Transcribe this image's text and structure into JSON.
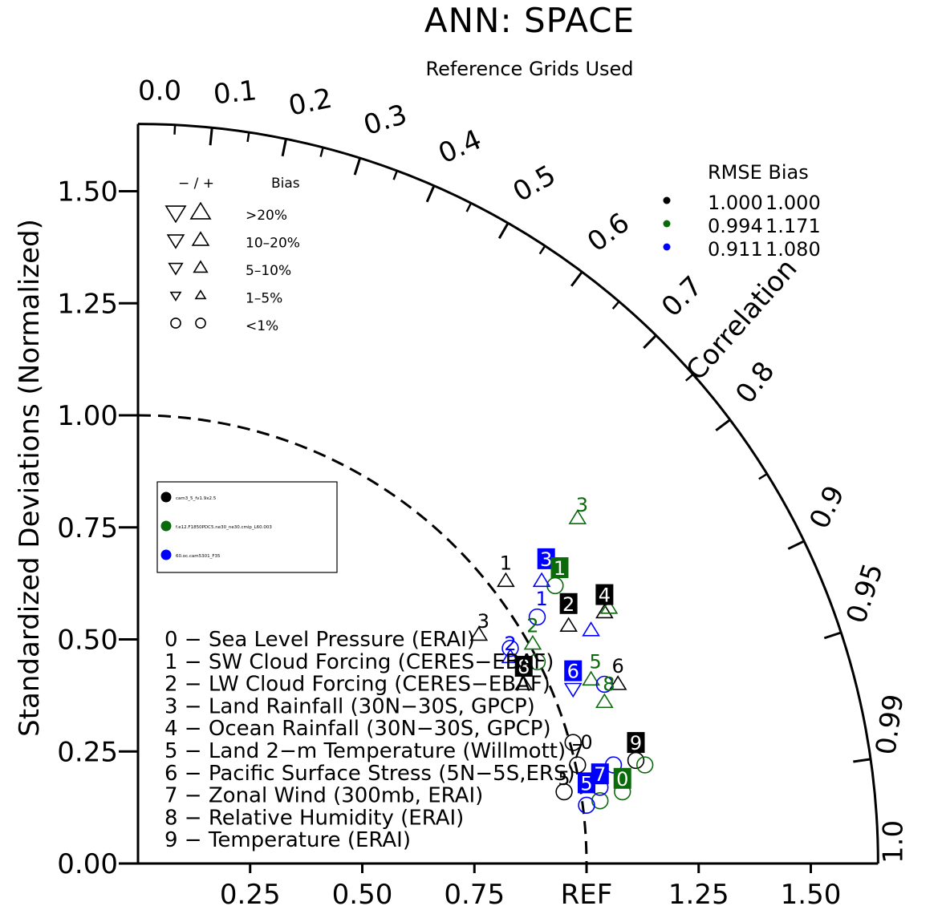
{
  "chart_data": {
    "type": "scatter",
    "subtype": "taylor-diagram",
    "title": "ANN: SPACE",
    "subtitle": "Reference Grids Used",
    "ylabel": "Standardized Deviations (Normalized)",
    "arc_label": "Correlation",
    "ref_label": "REF",
    "max_radius": 1.65,
    "y_ticks": [
      "0.00",
      "0.25",
      "0.50",
      "0.75",
      "1.00",
      "1.25",
      "1.50"
    ],
    "x_ticks": [
      "0.25",
      "0.50",
      "0.75",
      "REF",
      "1.25",
      "1.50"
    ],
    "correlation_ticks": [
      "0.0",
      "0.1",
      "0.2",
      "0.3",
      "0.4",
      "0.5",
      "0.6",
      "0.7",
      "0.8",
      "0.9",
      "0.95",
      "0.99",
      "1.0"
    ],
    "bias_legend": {
      "header_signs": "− / +",
      "header_label": "Bias",
      "rows": [
        ">20%",
        "10–20%",
        "5–10%",
        "1–5%",
        "<1%"
      ]
    },
    "rmse_table": {
      "header": "RMSE  Bias",
      "rows": [
        {
          "rmse": "1.000",
          "bias": "1.000",
          "color": "#000000"
        },
        {
          "rmse": "0.994",
          "bias": "1.171",
          "color": "#0b6b0b"
        },
        {
          "rmse": "0.911",
          "bias": "1.080",
          "color": "#0000ff"
        }
      ]
    },
    "variables": [
      "0 − Sea Level Pressure (ERAI)",
      "1 − SW Cloud Forcing (CERES−EBAF)",
      "2 − LW Cloud Forcing (CERES−EBAF)",
      "3 − Land Rainfall (30N−30S, GPCP)",
      "4 − Ocean Rainfall (30N−30S, GPCP)",
      "5 − Land 2−m Temperature (Willmott)",
      "6 − Pacific Surface Stress (5N−5S,ERS)",
      "7 − Zonal Wind (300mb, ERAI)",
      "8 − Relative Humidity (ERAI)",
      "9 − Temperature (ERAI)"
    ],
    "series": [
      {
        "name": "cam3_5_fv1.9x2.5",
        "color": "#000000",
        "points": [
          {
            "id": "0",
            "x": 0.97,
            "y": 0.27,
            "marker": "circle"
          },
          {
            "id": "1",
            "x": 0.82,
            "y": 0.63,
            "marker": "triangle-up"
          },
          {
            "id": "2",
            "x": 0.96,
            "y": 0.53,
            "marker": "triangle-up"
          },
          {
            "id": "3",
            "x": 0.76,
            "y": 0.51,
            "marker": "triangle-up"
          },
          {
            "id": "4",
            "x": 1.04,
            "y": 0.56,
            "marker": "triangle-up"
          },
          {
            "id": "5",
            "x": 0.95,
            "y": 0.16,
            "marker": "circle"
          },
          {
            "id": "6",
            "x": 1.07,
            "y": 0.4,
            "marker": "triangle-up"
          },
          {
            "id": "7",
            "x": 0.98,
            "y": 0.22,
            "marker": "circle"
          },
          {
            "id": "8",
            "x": 0.86,
            "y": 0.4,
            "marker": "triangle-up"
          },
          {
            "id": "9",
            "x": 1.11,
            "y": 0.23,
            "marker": "circle"
          }
        ]
      },
      {
        "name": "f.e12.F1850PDC5.ne30_ne30.cmip_L60.003",
        "color": "#0b6b0b",
        "points": [
          {
            "id": "0",
            "x": 1.08,
            "y": 0.16,
            "marker": "circle"
          },
          {
            "id": "1",
            "x": 0.93,
            "y": 0.62,
            "marker": "circle"
          },
          {
            "id": "2",
            "x": 0.88,
            "y": 0.49,
            "marker": "triangle-up"
          },
          {
            "id": "3",
            "x": 0.98,
            "y": 0.77,
            "marker": "triangle-up"
          },
          {
            "id": "4",
            "x": 1.05,
            "y": 0.57,
            "marker": "triangle-up"
          },
          {
            "id": "5",
            "x": 1.01,
            "y": 0.41,
            "marker": "triangle-up"
          },
          {
            "id": "6",
            "x": 1.04,
            "y": 0.36,
            "marker": "triangle-up"
          },
          {
            "id": "7",
            "x": 1.03,
            "y": 0.14,
            "marker": "circle"
          },
          {
            "id": "8",
            "x": 0.89,
            "y": 0.45,
            "marker": "circle"
          },
          {
            "id": "9",
            "x": 1.13,
            "y": 0.22,
            "marker": "circle"
          }
        ]
      },
      {
        "name": "60.oc.cam5301_F35",
        "color": "#0000ff",
        "points": [
          {
            "id": "0",
            "x": 1.06,
            "y": 0.22,
            "marker": "circle"
          },
          {
            "id": "1",
            "x": 0.89,
            "y": 0.55,
            "marker": "circle"
          },
          {
            "id": "2",
            "x": 0.83,
            "y": 0.46,
            "marker": "triangle-up"
          },
          {
            "id": "3",
            "x": 0.9,
            "y": 0.63,
            "marker": "triangle-up"
          },
          {
            "id": "4",
            "x": 1.01,
            "y": 0.52,
            "marker": "triangle-up"
          },
          {
            "id": "5",
            "x": 1.0,
            "y": 0.13,
            "marker": "circle"
          },
          {
            "id": "6",
            "x": 0.97,
            "y": 0.39,
            "marker": "triangle-down"
          },
          {
            "id": "7",
            "x": 1.03,
            "y": 0.17,
            "marker": "circle"
          },
          {
            "id": "8",
            "x": 0.83,
            "y": 0.48,
            "marker": "circle"
          },
          {
            "id": "9",
            "x": 1.04,
            "y": 0.4,
            "marker": "circle"
          }
        ]
      }
    ],
    "boxed_labels": [
      {
        "id": "8",
        "series": 0,
        "x": 0.86,
        "y": 0.44
      },
      {
        "id": "2",
        "series": 0,
        "x": 0.96,
        "y": 0.58
      },
      {
        "id": "4",
        "series": 0,
        "x": 1.04,
        "y": 0.6
      },
      {
        "id": "9",
        "series": 0,
        "x": 1.11,
        "y": 0.27
      },
      {
        "id": "3",
        "series": 2,
        "x": 0.91,
        "y": 0.68
      },
      {
        "id": "1",
        "series": 1,
        "x": 0.94,
        "y": 0.66
      },
      {
        "id": "6",
        "series": 2,
        "x": 0.97,
        "y": 0.43
      },
      {
        "id": "7",
        "series": 2,
        "x": 1.03,
        "y": 0.2
      },
      {
        "id": "5",
        "series": 2,
        "x": 1.0,
        "y": 0.18
      },
      {
        "id": "0",
        "series": 1,
        "x": 1.08,
        "y": 0.19
      }
    ],
    "number_labels": [
      {
        "id": "1",
        "series": 0,
        "x": 0.82,
        "y": 0.67
      },
      {
        "id": "3",
        "series": 0,
        "x": 0.77,
        "y": 0.54
      },
      {
        "id": "6",
        "series": 0,
        "x": 1.07,
        "y": 0.44
      },
      {
        "id": "3",
        "series": 1,
        "x": 0.99,
        "y": 0.8
      },
      {
        "id": "2",
        "series": 1,
        "x": 0.88,
        "y": 0.53
      },
      {
        "id": "1",
        "series": 2,
        "x": 0.9,
        "y": 0.59
      },
      {
        "id": "2",
        "series": 2,
        "x": 0.83,
        "y": 0.49
      },
      {
        "id": "0",
        "series": 0,
        "x": 1.0,
        "y": 0.27
      },
      {
        "id": "7",
        "series": 0,
        "x": 0.98,
        "y": 0.25
      },
      {
        "id": "5",
        "series": 0,
        "x": 0.95,
        "y": 0.19
      },
      {
        "id": "5",
        "series": 1,
        "x": 1.02,
        "y": 0.45
      },
      {
        "id": "8",
        "series": 1,
        "x": 1.05,
        "y": 0.4
      }
    ]
  }
}
